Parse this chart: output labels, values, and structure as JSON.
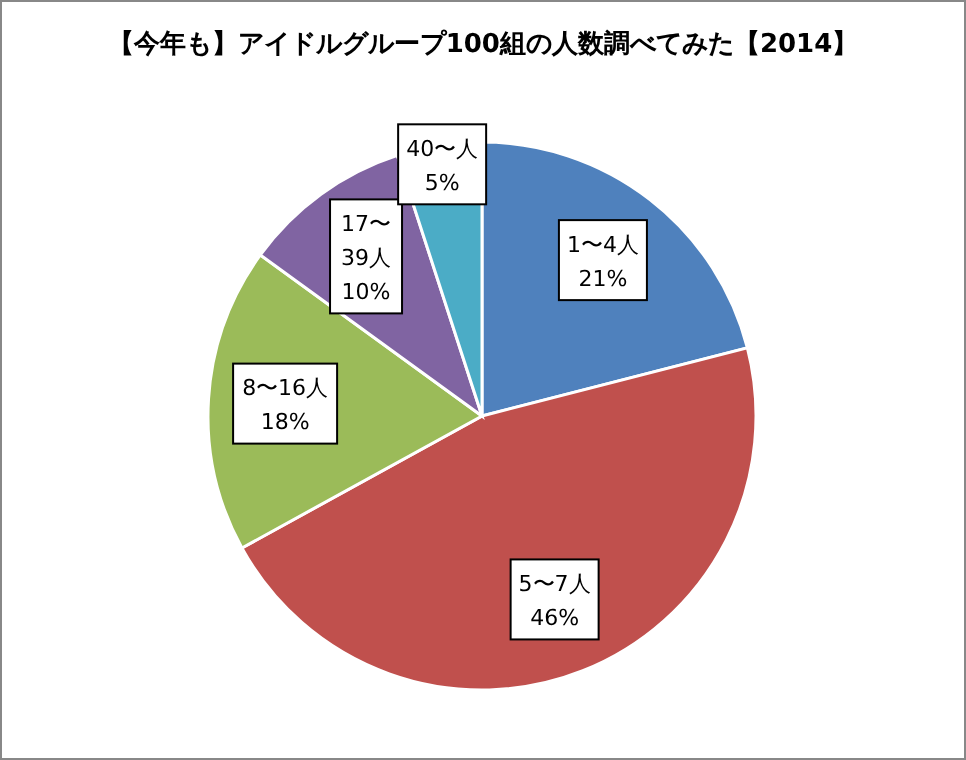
{
  "chart_data": {
    "type": "pie",
    "title": "【今年も】アイドルグループ100組の人数調べてみた【2014】",
    "categories": [
      "1〜4人",
      "5〜7人",
      "8〜16人",
      "17〜39人",
      "40〜人"
    ],
    "values": [
      21,
      46,
      18,
      10,
      5
    ],
    "colors": [
      "#4f81bd",
      "#c0504d",
      "#9bbb59",
      "#8064a2",
      "#4bacc6"
    ],
    "value_labels": [
      "21%",
      "46%",
      "18%",
      "10%",
      "5%"
    ]
  }
}
